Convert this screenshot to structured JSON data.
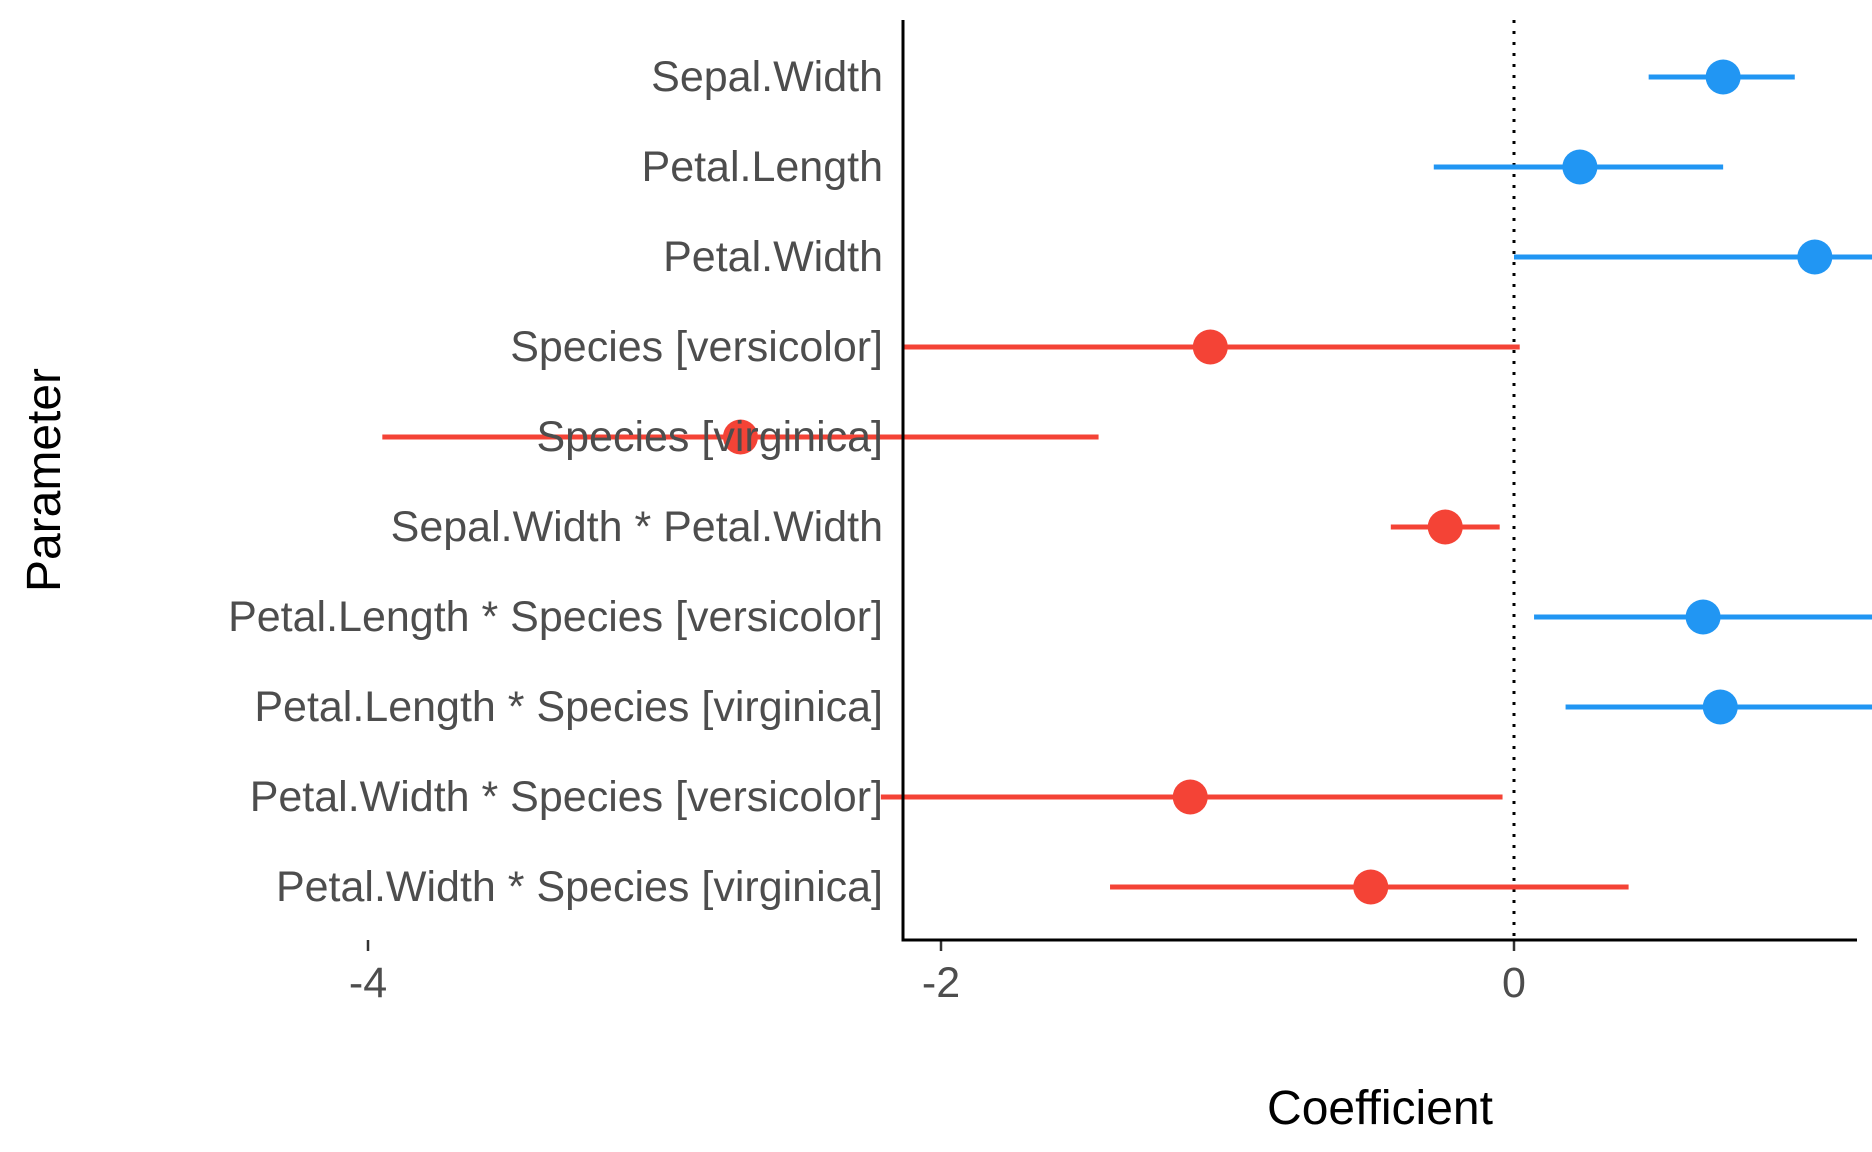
{
  "chart_data": {
    "type": "scatter",
    "subtype": "coefficient-forest-plot",
    "xlabel": "Coefficient",
    "ylabel": "Parameter",
    "xlim": [
      -4.25,
      2.4
    ],
    "x_ticks": [
      "-4",
      "-2",
      "0",
      "2"
    ],
    "reference_line": {
      "x": 0,
      "style": "dotted"
    },
    "grid": false,
    "legend": "none",
    "colors": {
      "positive": "#2196F3",
      "negative": "#F44336",
      "axis": "#000000",
      "tick_text": "#4d4d4d"
    },
    "parameters": [
      {
        "label": "Sepal.Width",
        "estimate": 0.73,
        "ci_low": 0.47,
        "ci_high": 0.98,
        "sign": "positive"
      },
      {
        "label": "Petal.Length",
        "estimate": 0.23,
        "ci_low": -0.28,
        "ci_high": 0.73,
        "sign": "positive"
      },
      {
        "label": "Petal.Width",
        "estimate": 1.05,
        "ci_low": 0.0,
        "ci_high": 2.1,
        "sign": "positive"
      },
      {
        "label": "Species [versicolor]",
        "estimate": -1.06,
        "ci_low": -2.13,
        "ci_high": 0.02,
        "sign": "negative"
      },
      {
        "label": "Species [virginica]",
        "estimate": -2.7,
        "ci_low": -3.95,
        "ci_high": -1.45,
        "sign": "negative"
      },
      {
        "label": "Sepal.Width * Petal.Width",
        "estimate": -0.24,
        "ci_low": -0.43,
        "ci_high": -0.05,
        "sign": "negative"
      },
      {
        "label": "Petal.Length * Species [versicolor]",
        "estimate": 0.66,
        "ci_low": 0.07,
        "ci_high": 1.25,
        "sign": "positive"
      },
      {
        "label": "Petal.Length * Species [virginica]",
        "estimate": 0.72,
        "ci_low": 0.18,
        "ci_high": 1.26,
        "sign": "positive"
      },
      {
        "label": "Petal.Width * Species [versicolor]",
        "estimate": -1.13,
        "ci_low": -2.21,
        "ci_high": -0.04,
        "sign": "negative"
      },
      {
        "label": "Petal.Width * Species [virginica]",
        "estimate": -0.5,
        "ci_low": -1.41,
        "ci_high": 0.4,
        "sign": "negative"
      }
    ]
  }
}
